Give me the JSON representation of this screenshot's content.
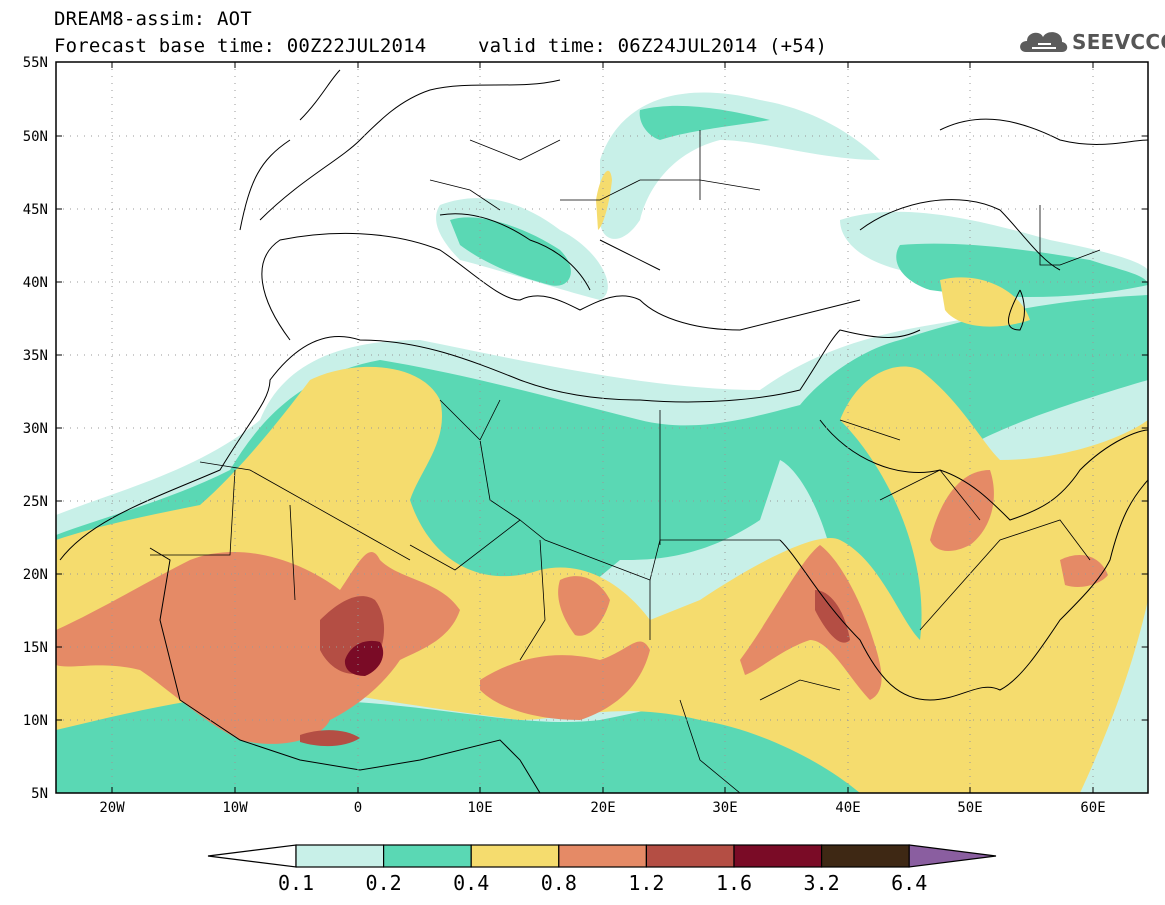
{
  "title": {
    "line1": "DREAM8-assim: AOT",
    "base_time": "Forecast base time: 00Z22JUL2014",
    "valid_time": "valid time: 06Z24JUL2014 (+54)"
  },
  "logo": {
    "text": "SEEVCCC",
    "icon": "cloud-icon"
  },
  "axes": {
    "lat_labels": [
      "55N",
      "50N",
      "45N",
      "40N",
      "35N",
      "30N",
      "25N",
      "20N",
      "15N",
      "10N",
      "5N"
    ],
    "lon_labels": [
      "20W",
      "10W",
      "0",
      "10E",
      "20E",
      "30E",
      "40E",
      "50E",
      "60E"
    ]
  },
  "colorbar": {
    "labels": [
      "0.1",
      "0.2",
      "0.4",
      "0.8",
      "1.2",
      "1.6",
      "3.2",
      "6.4"
    ],
    "colors": [
      "#ffffff",
      "#c8f0e8",
      "#5ad8b4",
      "#f5dc6e",
      "#e58a66",
      "#b44e44",
      "#7a0b26",
      "#3e2814",
      "#8a5ea0"
    ]
  }
}
